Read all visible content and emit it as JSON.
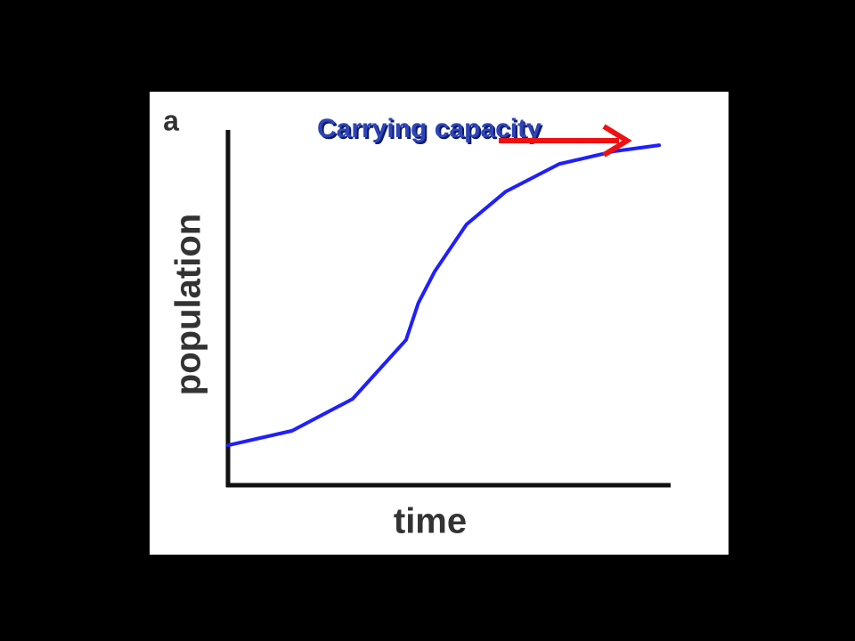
{
  "chart_data": {
    "type": "line",
    "panel_label": "a",
    "annotation": "Carrying capacity",
    "xlabel": "time",
    "ylabel": "population",
    "x": [
      0,
      14.5,
      28.2,
      40.3,
      43.1,
      46.8,
      54.0,
      62.9,
      75.0,
      87.5,
      97.6
    ],
    "values": [
      11.3,
      15.4,
      24.4,
      41.1,
      51.6,
      60.5,
      73.8,
      83.1,
      90.9,
      94.5,
      96.2
    ],
    "color": "#1f1fff",
    "xlim": [
      0,
      100
    ],
    "ylim": [
      0,
      100
    ]
  }
}
